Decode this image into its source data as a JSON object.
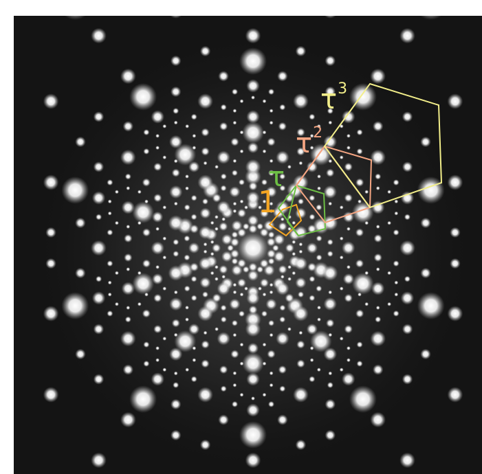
{
  "labels": {
    "one": {
      "base": "1",
      "exponent": "",
      "color": "#F5A623"
    },
    "tau": {
      "base": "τ",
      "exponent": "",
      "color": "#6DBE45"
    },
    "tau2": {
      "base": "τ",
      "exponent": "2",
      "color": "#F4A582"
    },
    "tau3": {
      "base": "τ",
      "exponent": "3",
      "color": "#F2EE8A"
    }
  },
  "colors": {
    "background": "#141414",
    "spot": "#ffffff",
    "pentagon_1": "#F5A623",
    "pentagon_tau": "#6DBE45",
    "pentagon_tau2": "#F4A582",
    "pentagon_tau3": "#F2EE8A"
  }
}
